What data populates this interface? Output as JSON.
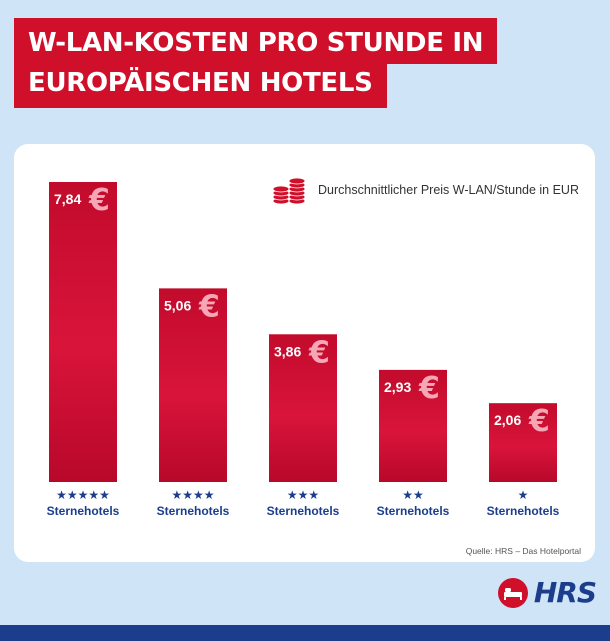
{
  "header": {
    "title_line_1": "W-LAN-KOSTEN PRO STUNDE IN",
    "title_line_2": "EUROPÄISCHEN HOTELS"
  },
  "legend": {
    "label": "Durchschnittlicher Preis W-LAN/Stunde in EUR",
    "icon": "coin-stacks-icon"
  },
  "source": "Quelle: HRS – Das Hotelportal",
  "logo": {
    "text": "HRS",
    "icon": "bed-icon"
  },
  "colors": {
    "background": "#cfe4f7",
    "bar": "#d0102b",
    "accent_navy": "#1b3d8c",
    "euro_sign": "#f6a7b5"
  },
  "chart_data": {
    "type": "bar",
    "categories": [
      "5 Sterne",
      "4 Sterne",
      "3 Sterne",
      "2 Sterne",
      "1 Stern"
    ],
    "star_counts": [
      5,
      4,
      3,
      2,
      1
    ],
    "category_labels": [
      "Sternehotels",
      "Sternehotels",
      "Sternehotels",
      "Sternehotels",
      "Sternehotels"
    ],
    "values": [
      7.84,
      5.06,
      3.86,
      2.93,
      2.06
    ],
    "value_labels": [
      "7,84",
      "5,06",
      "3,86",
      "2,93",
      "2,06"
    ],
    "unit_symbol": "€",
    "ylim": [
      0,
      7.84
    ],
    "grid": false,
    "legend_position": "top-right"
  }
}
